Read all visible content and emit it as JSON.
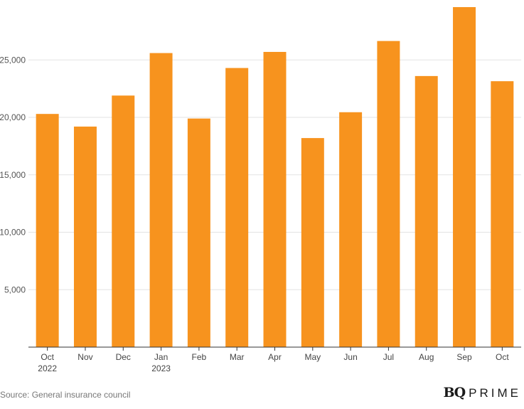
{
  "chart_data": {
    "type": "bar",
    "title": "",
    "xlabel": "",
    "ylabel": "",
    "categories": [
      "Oct",
      "Nov",
      "Dec",
      "Jan",
      "Feb",
      "Mar",
      "Apr",
      "May",
      "Jun",
      "Jul",
      "Aug",
      "Sep",
      "Oct"
    ],
    "category_sublabels": [
      "2022",
      "",
      "",
      "2023",
      "",
      "",
      "",
      "",
      "",
      "",
      "",
      "",
      ""
    ],
    "values": [
      20300,
      19200,
      21900,
      25600,
      19900,
      24300,
      25700,
      18200,
      20450,
      26650,
      23600,
      29600,
      23150
    ],
    "ylim": [
      0,
      29600
    ],
    "yticks": [
      5000,
      10000,
      15000,
      20000,
      25000
    ],
    "ytick_labels": [
      "5,000",
      "10,000",
      "15,000",
      "20,000",
      "25,000"
    ],
    "grid": true,
    "legend": "none",
    "bar_color": "#f7931e"
  },
  "footer": {
    "source": "Source: General insurance council",
    "logo_bq": "BQ",
    "logo_prime": "PRIME"
  }
}
